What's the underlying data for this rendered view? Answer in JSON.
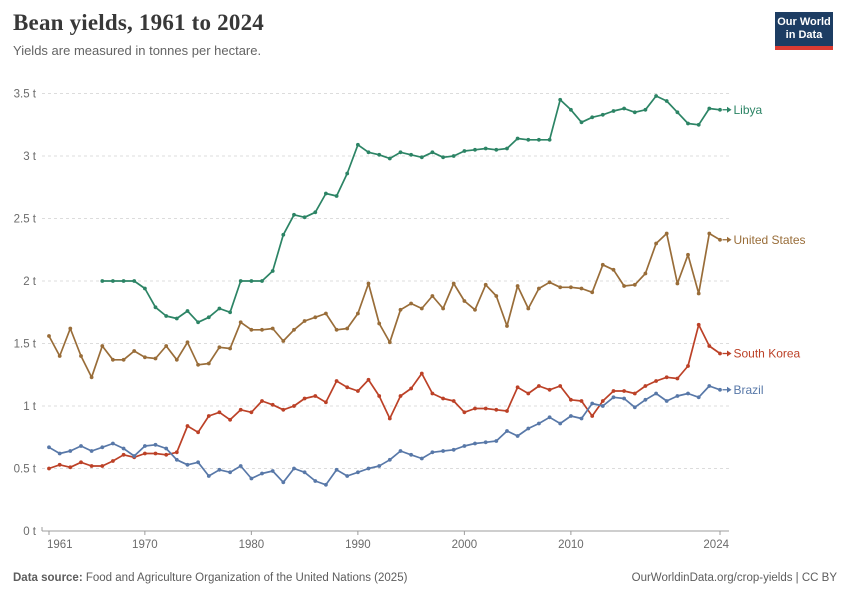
{
  "header": {
    "title": "Bean yields, 1961 to 2024",
    "subtitle": "Yields are measured in tonnes per hectare."
  },
  "logo": {
    "line1": "Our World",
    "line2": "in Data"
  },
  "footer": {
    "source_label": "Data source:",
    "source_text": " Food and Agriculture Organization of the United Nations (2025)",
    "right_text": "OurWorldinData.org/crop-yields | CC BY"
  },
  "chart_data": {
    "type": "line",
    "title": "Bean yields, 1961 to 2024",
    "ylabel": "tonnes per hectare",
    "x_range": [
      1961,
      2024
    ],
    "x_ticks": [
      1961,
      1970,
      1980,
      1990,
      2000,
      2010,
      2024
    ],
    "y_ticks": [
      0,
      0.5,
      1,
      1.5,
      2,
      2.5,
      3,
      3.5
    ],
    "y_tick_suffix": " t",
    "ylim": [
      0,
      3.5
    ],
    "grid": true,
    "legend_position": "right-end-labels",
    "colors": {
      "axis": "#9c9c9c",
      "gridline": "#dcdcdc",
      "tick_text": "#6b6b6b"
    },
    "series": [
      {
        "name": "Libya",
        "color": "#2C8465",
        "start_year": 1966,
        "values": [
          2.0,
          2.0,
          2.0,
          2.0,
          1.94,
          1.79,
          1.72,
          1.7,
          1.76,
          1.67,
          1.71,
          1.78,
          1.75,
          2.0,
          2.0,
          2.0,
          2.08,
          2.37,
          2.53,
          2.51,
          2.55,
          2.7,
          2.68,
          2.86,
          3.09,
          3.03,
          3.01,
          2.98,
          3.03,
          3.01,
          2.99,
          3.03,
          2.99,
          3.0,
          3.04,
          3.05,
          3.06,
          3.05,
          3.06,
          3.14,
          3.13,
          3.13,
          3.13,
          3.45,
          3.37,
          3.27,
          3.31,
          3.33,
          3.36,
          3.38,
          3.35,
          3.37,
          3.48,
          3.44,
          3.35,
          3.26,
          3.25,
          3.38,
          3.37
        ]
      },
      {
        "name": "United States",
        "color": "#996D39",
        "start_year": 1961,
        "values": [
          1.56,
          1.4,
          1.62,
          1.4,
          1.23,
          1.48,
          1.37,
          1.37,
          1.44,
          1.39,
          1.38,
          1.48,
          1.37,
          1.51,
          1.33,
          1.34,
          1.47,
          1.46,
          1.67,
          1.61,
          1.61,
          1.62,
          1.52,
          1.61,
          1.68,
          1.71,
          1.74,
          1.61,
          1.62,
          1.74,
          1.98,
          1.66,
          1.51,
          1.77,
          1.82,
          1.78,
          1.88,
          1.78,
          1.98,
          1.84,
          1.77,
          1.97,
          1.88,
          1.64,
          1.96,
          1.78,
          1.94,
          1.99,
          1.95,
          1.95,
          1.94,
          1.91,
          2.13,
          2.09,
          1.96,
          1.97,
          2.06,
          2.3,
          2.38,
          1.98,
          2.21,
          1.9,
          2.38,
          2.33
        ]
      },
      {
        "name": "South Korea",
        "color": "#BC4127",
        "start_year": 1961,
        "values": [
          0.5,
          0.53,
          0.51,
          0.55,
          0.52,
          0.52,
          0.56,
          0.61,
          0.59,
          0.62,
          0.62,
          0.61,
          0.63,
          0.84,
          0.79,
          0.92,
          0.95,
          0.89,
          0.97,
          0.95,
          1.04,
          1.01,
          0.97,
          1.0,
          1.06,
          1.08,
          1.03,
          1.2,
          1.15,
          1.12,
          1.21,
          1.08,
          0.9,
          1.08,
          1.14,
          1.26,
          1.1,
          1.06,
          1.04,
          0.95,
          0.98,
          0.98,
          0.97,
          0.96,
          1.15,
          1.1,
          1.16,
          1.13,
          1.16,
          1.05,
          1.04,
          0.92,
          1.04,
          1.12,
          1.12,
          1.1,
          1.16,
          1.2,
          1.23,
          1.22,
          1.32,
          1.65,
          1.48,
          1.42
        ]
      },
      {
        "name": "Brazil",
        "color": "#5878A8",
        "start_year": 1961,
        "values": [
          0.67,
          0.62,
          0.64,
          0.68,
          0.64,
          0.67,
          0.7,
          0.66,
          0.6,
          0.68,
          0.69,
          0.66,
          0.57,
          0.53,
          0.55,
          0.44,
          0.49,
          0.47,
          0.52,
          0.42,
          0.46,
          0.48,
          0.39,
          0.5,
          0.47,
          0.4,
          0.37,
          0.49,
          0.44,
          0.47,
          0.5,
          0.52,
          0.57,
          0.64,
          0.61,
          0.58,
          0.63,
          0.64,
          0.65,
          0.68,
          0.7,
          0.71,
          0.72,
          0.8,
          0.76,
          0.82,
          0.86,
          0.91,
          0.86,
          0.92,
          0.9,
          1.02,
          1.0,
          1.07,
          1.06,
          0.99,
          1.05,
          1.1,
          1.04,
          1.08,
          1.1,
          1.07,
          1.16,
          1.13
        ]
      }
    ]
  }
}
